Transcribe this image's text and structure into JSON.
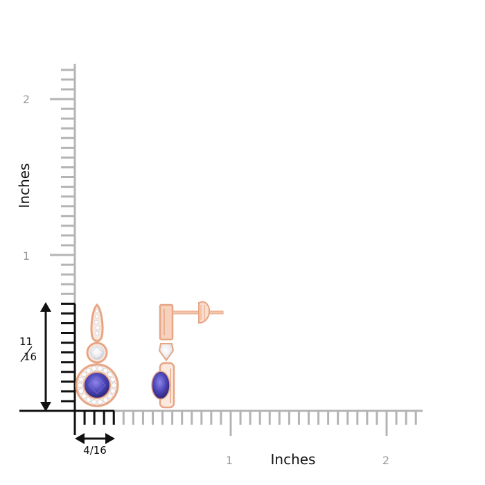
{
  "ruler": {
    "unit_label_x": "Inches",
    "unit_label_y": "Inches",
    "x_ticks": [
      "1",
      "2"
    ],
    "y_ticks": [
      "1",
      "2"
    ],
    "ticks_per_inch": 16
  },
  "dimensions": {
    "height_num": "11",
    "height_den": "16",
    "width_label": "4/16",
    "height_value_in": 0.6875,
    "width_value_in": 0.25
  },
  "product": {
    "metal_color": "#e7a584",
    "gem_center_color": "#4d47b8",
    "accent_diamond_color": "#f2f2f2"
  },
  "colors": {
    "ruler_gray": "#b4b4b4",
    "dim_black": "#111111"
  }
}
